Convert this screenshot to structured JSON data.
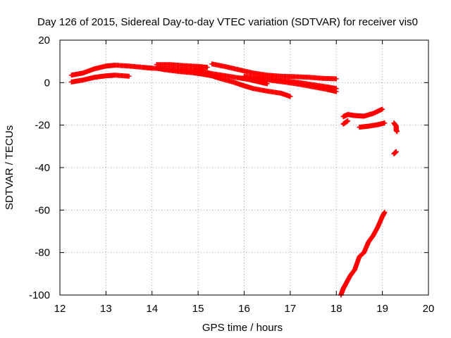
{
  "chart_data": {
    "type": "scatter",
    "title": "Day 126 of 2015, Sidereal Day-to-day VTEC variation (SDTVAR) for receiver vis0",
    "xlabel": "GPS time / hours",
    "ylabel": "SDTVAR / TECUs",
    "xlim": [
      12,
      20
    ],
    "ylim": [
      -100,
      20
    ],
    "xticks": [
      12,
      13,
      14,
      15,
      16,
      17,
      18,
      19,
      20
    ],
    "yticks": [
      -100,
      -80,
      -60,
      -40,
      -20,
      0,
      20
    ],
    "grid": true,
    "marker": "plus",
    "color": "#ff0000",
    "series": [
      {
        "x": [
          12.25,
          12.5,
          12.75,
          13.0,
          13.2,
          13.5,
          13.8,
          14.0,
          14.3,
          14.6,
          14.9,
          15.1,
          15.3,
          15.6,
          15.9,
          16.1,
          16.3,
          16.5
        ],
        "y": [
          3.5,
          4.5,
          6.5,
          7.8,
          8.2,
          7.8,
          7.2,
          6.8,
          6.5,
          6.2,
          5.8,
          5.2,
          4.2,
          3.2,
          2.2,
          1.5,
          0.5,
          -0.5
        ]
      },
      {
        "x": [
          12.25,
          12.5,
          12.75,
          13.0,
          13.2,
          13.5
        ],
        "y": [
          0.3,
          1.2,
          2.5,
          3.2,
          3.5,
          3.0
        ]
      },
      {
        "x": [
          14.1,
          14.3,
          14.6,
          14.9,
          15.1,
          15.3,
          15.5,
          15.8,
          16.0,
          16.2,
          16.5,
          16.8,
          17.0
        ],
        "y": [
          6.8,
          6.0,
          5.2,
          4.6,
          4.0,
          3.2,
          1.8,
          0.0,
          -1.5,
          -2.8,
          -4.0,
          -5.0,
          -6.5
        ]
      },
      {
        "x": [
          14.1,
          14.4,
          14.7,
          15.0,
          15.2
        ],
        "y": [
          8.5,
          8.5,
          8.0,
          7.6,
          7.2
        ]
      },
      {
        "x": [
          15.3,
          15.6,
          15.9,
          16.2,
          16.5,
          16.8,
          17.1,
          17.4,
          17.7,
          18.0
        ],
        "y": [
          8.8,
          7.5,
          6.0,
          4.5,
          3.5,
          3.0,
          2.8,
          2.5,
          2.0,
          1.8
        ]
      },
      {
        "x": [
          16.0,
          16.3,
          16.6,
          16.9,
          17.2,
          17.5,
          17.8,
          18.0
        ],
        "y": [
          3.0,
          2.0,
          1.5,
          0.8,
          0.0,
          -1.0,
          -2.0,
          -2.8
        ]
      },
      {
        "x": [
          16.3,
          16.6,
          16.9,
          17.2,
          17.5,
          17.8,
          18.0
        ],
        "y": [
          2.5,
          1.0,
          0.2,
          -0.8,
          -2.0,
          -3.2,
          -4.2
        ]
      },
      {
        "x": [
          18.15,
          18.25,
          18.4,
          18.6,
          18.8,
          19.0
        ],
        "y": [
          -16.0,
          -15.0,
          -15.5,
          -15.8,
          -14.5,
          -12.5
        ]
      },
      {
        "x": [
          18.15,
          18.25
        ],
        "y": [
          -19.5,
          -18.0
        ]
      },
      {
        "x": [
          18.5,
          18.7,
          18.9,
          19.05
        ],
        "y": [
          -21.0,
          -20.5,
          -19.8,
          -19.0
        ]
      },
      {
        "x": [
          19.25,
          19.3,
          19.3,
          19.32
        ],
        "y": [
          -19.0,
          -20.5,
          -22.5,
          -23.0
        ]
      },
      {
        "x": [
          19.25,
          19.3
        ],
        "y": [
          -33.5,
          -32.5
        ]
      },
      {
        "x": [
          18.1,
          18.15,
          18.2,
          18.3,
          18.4,
          18.5,
          18.6,
          18.7,
          18.8,
          18.9,
          19.0,
          19.05
        ],
        "y": [
          -100,
          -97,
          -95,
          -91,
          -88,
          -82,
          -80,
          -75,
          -72,
          -68,
          -63,
          -61
        ]
      }
    ]
  }
}
